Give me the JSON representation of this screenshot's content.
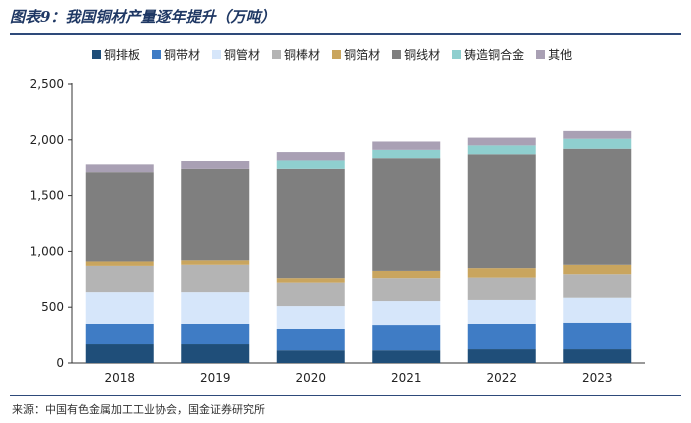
{
  "header": {
    "title": "图表9：我国铜材产量逐年提升（万吨）"
  },
  "footer": {
    "source": "来源：中国有色金属加工工业协会，国金证券研究所"
  },
  "chart_data": {
    "type": "bar",
    "stacked": true,
    "title": "图表9：我国铜材产量逐年提升（万吨）",
    "xlabel": "",
    "ylabel": "",
    "ylim": [
      0,
      2500
    ],
    "yticks": [
      0,
      500,
      1000,
      1500,
      2000,
      2500
    ],
    "ytick_labels": [
      "0",
      "500",
      "1,000",
      "1,500",
      "2,000",
      "2,500"
    ],
    "categories": [
      "2018",
      "2019",
      "2020",
      "2021",
      "2022",
      "2023"
    ],
    "series": [
      {
        "name": "铜排板",
        "color": "#1f4e79",
        "values": [
          170,
          170,
          115,
          115,
          125,
          125
        ]
      },
      {
        "name": "铜带材",
        "color": "#3f7cc5",
        "values": [
          180,
          180,
          190,
          225,
          225,
          235
        ]
      },
      {
        "name": "铜管材",
        "color": "#d6e6fa",
        "values": [
          285,
          285,
          205,
          215,
          215,
          225
        ]
      },
      {
        "name": "铜棒材",
        "color": "#b4b4b4",
        "values": [
          235,
          245,
          210,
          205,
          200,
          210
        ]
      },
      {
        "name": "铜箔材",
        "color": "#c9a55e",
        "values": [
          40,
          40,
          40,
          65,
          85,
          85
        ]
      },
      {
        "name": "铜线材",
        "color": "#7f7f7f",
        "values": [
          800,
          820,
          980,
          1010,
          1020,
          1040
        ]
      },
      {
        "name": "铸造铜合金",
        "color": "#8fcfcf",
        "values": [
          0,
          0,
          75,
          75,
          80,
          90
        ]
      },
      {
        "name": "其他",
        "color": "#a9a0b4",
        "values": [
          70,
          70,
          75,
          75,
          70,
          70
        ]
      }
    ]
  }
}
